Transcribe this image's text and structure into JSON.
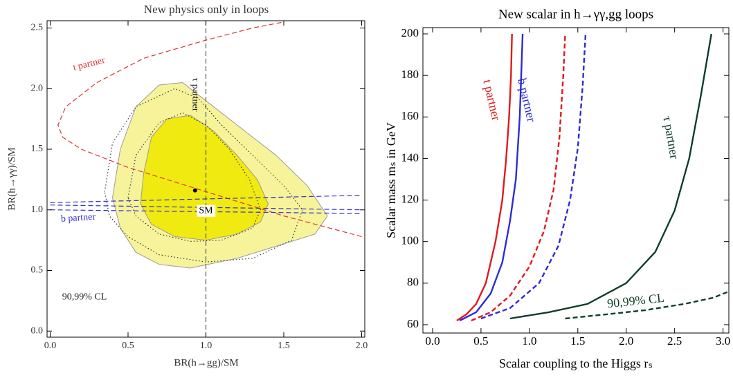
{
  "chart_data": [
    {
      "type": "contour",
      "title": "New physics only in loops",
      "x_label": "BR(h→gg)/SM",
      "y_label": "BR(h→γγ)/SM",
      "xlim": [
        -0.02,
        2.02
      ],
      "ylim": [
        -0.05,
        2.56
      ],
      "xticks": [
        {
          "value": 0,
          "label": "0.0"
        },
        0.5,
        {
          "value": 1,
          "label": "1.0"
        },
        1.5,
        {
          "value": 2,
          "label": "2.0"
        }
      ],
      "yticks": [
        {
          "value": 0,
          "label": "0.0"
        },
        0.5,
        {
          "value": 1,
          "label": "1.0"
        },
        1.5,
        {
          "value": 2,
          "label": "2.0"
        },
        2.5
      ],
      "series": [
        {
          "color": "#9a9a9a",
          "fill": "#f6f39a",
          "dash": "solid",
          "closed": true,
          "x": [
            0.45,
            0.55,
            0.7,
            0.85,
            1.0,
            1.2,
            1.45,
            1.65,
            1.78,
            1.7,
            1.5,
            1.2,
            0.9,
            0.7,
            0.55,
            0.45,
            0.4
          ],
          "y": [
            1.5,
            1.85,
            2.03,
            2.05,
            1.9,
            1.7,
            1.45,
            1.2,
            0.95,
            0.8,
            0.72,
            0.6,
            0.52,
            0.55,
            0.65,
            0.85,
            1.1
          ]
        },
        {
          "color": "#9a9a9a",
          "fill": "#f0ea10",
          "dash": "solid",
          "closed": true,
          "x": [
            0.6,
            0.65,
            0.75,
            0.9,
            1.05,
            1.2,
            1.33,
            1.4,
            1.35,
            1.2,
            1.0,
            0.8,
            0.65,
            0.58
          ],
          "y": [
            1.3,
            1.6,
            1.75,
            1.78,
            1.65,
            1.45,
            1.25,
            1.05,
            0.9,
            0.8,
            0.75,
            0.78,
            0.88,
            1.05
          ]
        },
        {
          "color": "#333333",
          "dash": "dotted",
          "closed": true,
          "x": [
            0.35,
            0.4,
            0.55,
            0.8,
            0.95,
            1.1,
            1.3,
            1.5,
            1.62,
            1.55,
            1.3,
            1.0,
            0.7,
            0.5,
            0.38
          ],
          "y": [
            1.15,
            1.55,
            1.85,
            2.0,
            1.92,
            1.7,
            1.45,
            1.2,
            1.0,
            0.75,
            0.6,
            0.57,
            0.63,
            0.78,
            0.95
          ]
        },
        {
          "color": "#333333",
          "dash": "dotted",
          "closed": true,
          "x": [
            0.5,
            0.55,
            0.7,
            0.85,
            1.0,
            1.15,
            1.28,
            1.35,
            1.3,
            1.1,
            0.9,
            0.7,
            0.55
          ],
          "y": [
            1.1,
            1.45,
            1.72,
            1.8,
            1.7,
            1.5,
            1.25,
            1.0,
            0.85,
            0.75,
            0.74,
            0.8,
            0.95
          ]
        },
        {
          "color": "#e03030",
          "dash": "dashed",
          "x": [
            2.0,
            1.5,
            1.0,
            0.5,
            0.2,
            0.08,
            0.05,
            0.1,
            0.3,
            0.6,
            1.0,
            1.3,
            1.5
          ],
          "y": [
            0.78,
            0.95,
            1.15,
            1.35,
            1.5,
            1.6,
            1.7,
            1.85,
            2.05,
            2.25,
            2.4,
            2.5,
            2.55
          ]
        },
        {
          "color": "#555555",
          "dash": "dashed",
          "x": [
            1,
            1
          ],
          "y": [
            -0.05,
            2.56
          ]
        },
        {
          "color": "#3030d0",
          "dash": "dashed",
          "x": [
            0,
            2,
            null,
            0,
            2,
            null,
            0,
            2
          ],
          "y": [
            1.06,
            1.12,
            null,
            1.04,
            1.0,
            null,
            1.0,
            0.97
          ]
        },
        {
          "color": "#000000",
          "marker": true,
          "x": [
            0.93
          ],
          "y": [
            1.16
          ]
        }
      ],
      "annotations": [
        {
          "text": "t partner",
          "x": 0.25,
          "y": 2.2,
          "color": "#e03030"
        },
        {
          "text": "τ partner",
          "x": 0.93,
          "y": 1.95,
          "color": "#222222"
        },
        {
          "text": "b partner",
          "x": 0.18,
          "y": 0.93,
          "color": "#3030d0"
        },
        {
          "text": "SM",
          "x": 1.0,
          "y": 0.99,
          "color": "#000000",
          "box": true
        },
        {
          "text": "90,99% CL",
          "x": 0.22,
          "y": 0.28,
          "color": "#222222"
        }
      ]
    },
    {
      "type": "line",
      "title": "New scalar in h→γγ,gg loops",
      "x_label": "Scalar coupling to the Higgs rₛ",
      "y_label": "Scalar mass mₛ in GeV",
      "xlim": [
        -0.1,
        3.06
      ],
      "ylim": [
        56,
        203
      ],
      "xticks": [
        {
          "value": 0,
          "label": "0.0"
        },
        0.5,
        {
          "value": 1,
          "label": "1.0"
        },
        1.5,
        {
          "value": 2,
          "label": "2.0"
        },
        2.5,
        {
          "value": 3,
          "label": "3.0"
        }
      ],
      "yticks": [
        60,
        80,
        100,
        120,
        140,
        160,
        180,
        200
      ],
      "series": [
        {
          "color": "#e0191c",
          "dash": "solid",
          "x": [
            0.25,
            0.35,
            0.45,
            0.55,
            0.65,
            0.72,
            0.76,
            0.79,
            0.81,
            0.82
          ],
          "y": [
            62,
            65,
            70,
            80,
            100,
            120,
            140,
            160,
            180,
            200
          ]
        },
        {
          "color": "#2b2bd8",
          "dash": "solid",
          "x": [
            0.28,
            0.45,
            0.6,
            0.72,
            0.8,
            0.86,
            0.9,
            0.93
          ],
          "y": [
            62,
            66,
            75,
            90,
            110,
            130,
            160,
            200
          ]
        },
        {
          "color": "#e0191c",
          "dash": "dashed",
          "x": [
            0.4,
            0.6,
            0.8,
            1.0,
            1.15,
            1.25,
            1.31,
            1.35,
            1.37
          ],
          "y": [
            62,
            66,
            74,
            88,
            105,
            125,
            150,
            180,
            200
          ]
        },
        {
          "color": "#2b2bd8",
          "dash": "dashed",
          "x": [
            0.5,
            0.8,
            1.1,
            1.3,
            1.42,
            1.5,
            1.55,
            1.58
          ],
          "y": [
            63,
            68,
            80,
            98,
            120,
            145,
            175,
            200
          ]
        },
        {
          "color": "#0f3d26",
          "dash": "solid",
          "x": [
            0.8,
            1.2,
            1.6,
            2.0,
            2.3,
            2.5,
            2.65,
            2.77,
            2.88
          ],
          "y": [
            63,
            66,
            70,
            80,
            95,
            115,
            140,
            170,
            200
          ]
        },
        {
          "color": "#0f3d26",
          "dash": "dashed",
          "x": [
            1.37,
            1.8,
            2.2,
            2.6,
            2.9,
            3.06
          ],
          "y": [
            63,
            65,
            67,
            70,
            73,
            76
          ]
        }
      ],
      "annotations": [
        {
          "text": "t partner",
          "x": 0.6,
          "y": 168,
          "color": "#e0191c"
        },
        {
          "text": "b partner",
          "x": 0.96,
          "y": 168,
          "color": "#2b2bd8"
        },
        {
          "text": "τ partner",
          "x": 2.45,
          "y": 150,
          "color": "#0f3d26"
        },
        {
          "text": "90,99% CL",
          "x": 2.1,
          "y": 71,
          "color": "#0f3d26"
        }
      ]
    }
  ]
}
